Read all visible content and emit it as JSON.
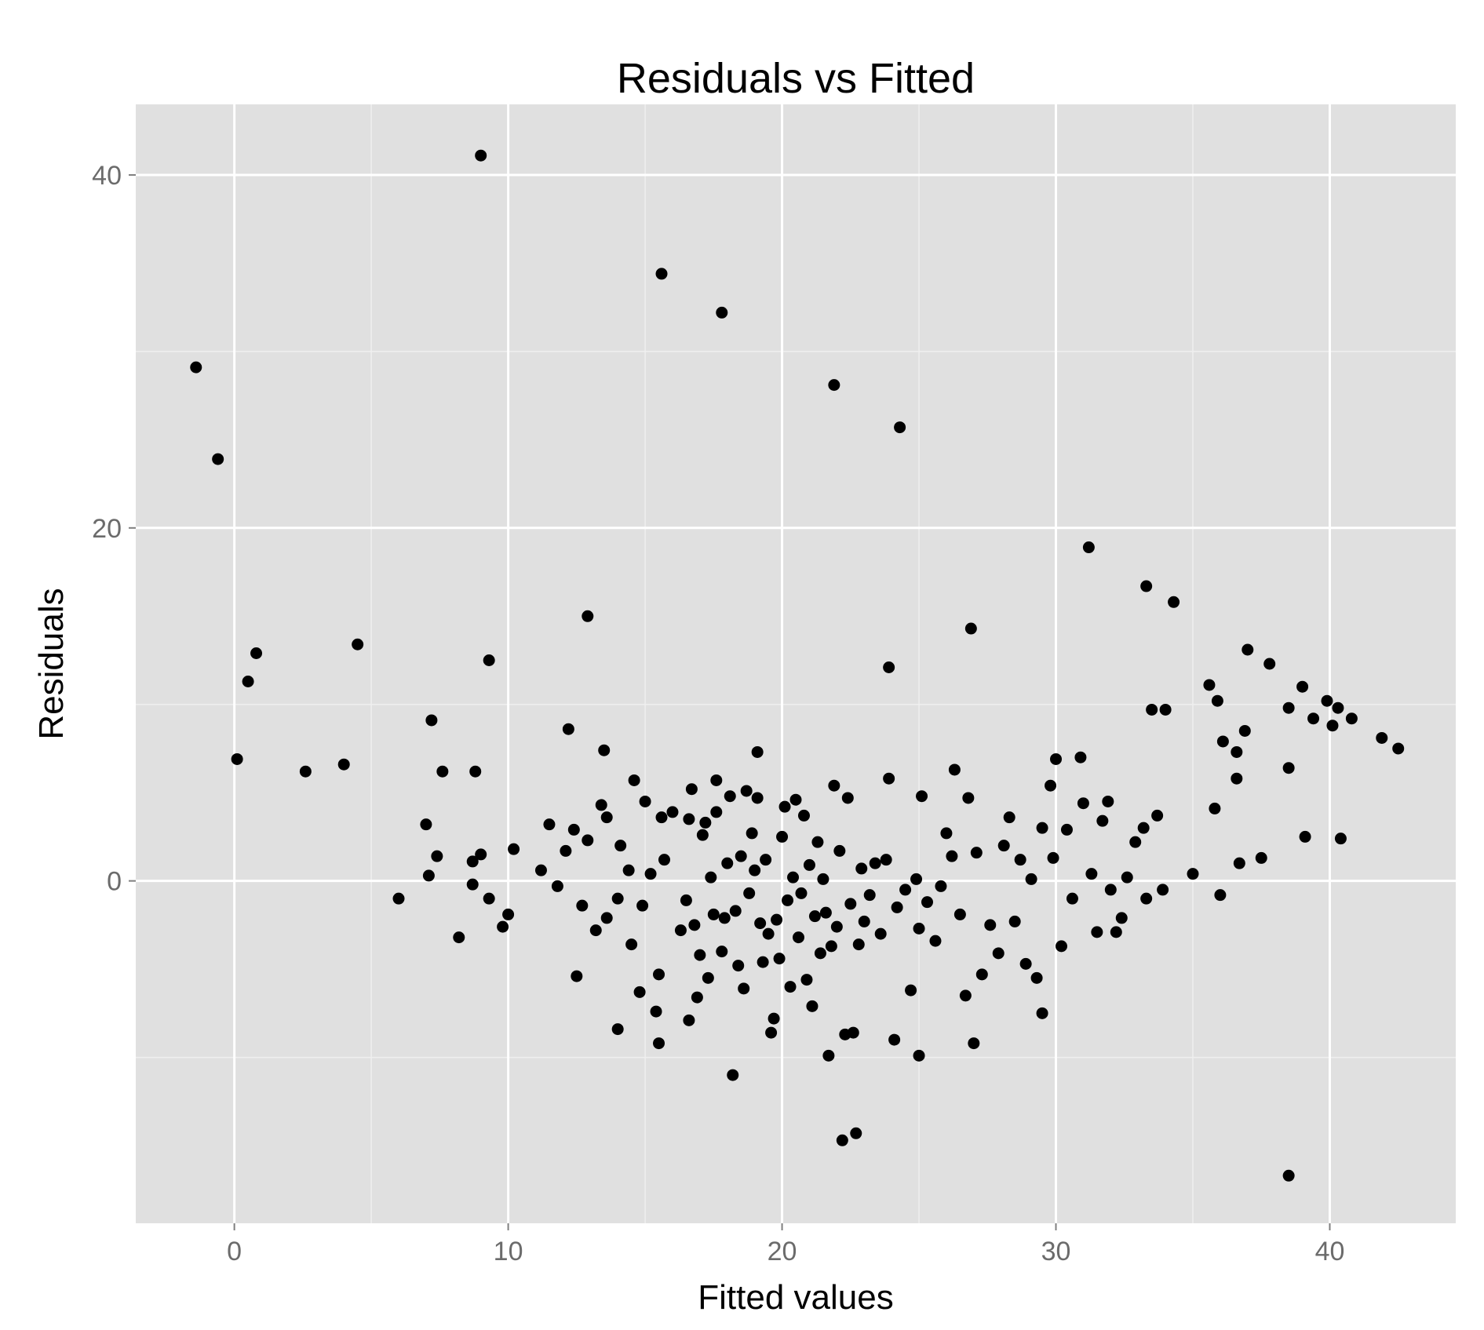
{
  "colors": {
    "panel_background": "#e0e0e0",
    "grid_major": "#ffffff",
    "grid_minor": "#efefef",
    "point": "#000000",
    "tick_label": "#6b6b6b",
    "text": "#000000"
  },
  "chart_data": {
    "type": "scatter",
    "title": "Residuals vs Fitted",
    "xlabel": "Fitted values",
    "ylabel": "Residuals",
    "xlim": [
      -3.6,
      44.6
    ],
    "ylim": [
      -19.4,
      44.0
    ],
    "x_ticks": [
      0,
      10,
      20,
      30,
      40
    ],
    "y_ticks": [
      0,
      20,
      40
    ],
    "x_tick_labels": [
      "0",
      "10",
      "20",
      "30",
      "40"
    ],
    "y_tick_labels": [
      "0",
      "20",
      "40"
    ],
    "grid": true,
    "legend": "none",
    "points": [
      [
        9.0,
        41.1
      ],
      [
        15.6,
        34.4
      ],
      [
        17.8,
        32.2
      ],
      [
        21.9,
        28.1
      ],
      [
        24.3,
        25.7
      ],
      [
        -1.4,
        29.1
      ],
      [
        -0.6,
        23.9
      ],
      [
        0.8,
        12.9
      ],
      [
        0.5,
        11.3
      ],
      [
        4.5,
        13.4
      ],
      [
        9.3,
        12.5
      ],
      [
        12.9,
        15.0
      ],
      [
        0.1,
        6.9
      ],
      [
        2.6,
        6.2
      ],
      [
        4.0,
        6.6
      ],
      [
        7.2,
        9.1
      ],
      [
        7.6,
        6.2
      ],
      [
        8.8,
        6.2
      ],
      [
        7.0,
        3.2
      ],
      [
        7.4,
        1.4
      ],
      [
        7.1,
        0.3
      ],
      [
        8.2,
        -3.2
      ],
      [
        8.7,
        -0.2
      ],
      [
        8.7,
        1.1
      ],
      [
        9.0,
        1.5
      ],
      [
        9.3,
        -1.0
      ],
      [
        9.8,
        -2.6
      ],
      [
        10.0,
        -1.9
      ],
      [
        10.2,
        1.8
      ],
      [
        6.0,
        -1.0
      ],
      [
        11.2,
        0.6
      ],
      [
        11.5,
        3.2
      ],
      [
        11.8,
        -0.3
      ],
      [
        12.1,
        1.7
      ],
      [
        12.4,
        2.9
      ],
      [
        12.2,
        8.6
      ],
      [
        12.5,
        -5.4
      ],
      [
        12.7,
        -1.4
      ],
      [
        12.9,
        2.3
      ],
      [
        13.2,
        -2.8
      ],
      [
        13.4,
        4.3
      ],
      [
        13.5,
        7.4
      ],
      [
        13.6,
        -2.1
      ],
      [
        13.6,
        3.6
      ],
      [
        14.0,
        -1.0
      ],
      [
        14.0,
        -8.4
      ],
      [
        14.1,
        2.0
      ],
      [
        14.4,
        0.6
      ],
      [
        14.5,
        -3.6
      ],
      [
        14.6,
        5.7
      ],
      [
        14.8,
        -6.3
      ],
      [
        14.9,
        -1.4
      ],
      [
        15.0,
        4.5
      ],
      [
        15.2,
        0.4
      ],
      [
        15.4,
        -7.4
      ],
      [
        15.5,
        -9.2
      ],
      [
        15.5,
        -5.3
      ],
      [
        15.6,
        3.6
      ],
      [
        15.7,
        1.2
      ],
      [
        16.0,
        3.9
      ],
      [
        16.3,
        -2.8
      ],
      [
        16.5,
        -1.1
      ],
      [
        16.6,
        3.5
      ],
      [
        16.6,
        -7.9
      ],
      [
        16.7,
        5.2
      ],
      [
        16.8,
        -2.5
      ],
      [
        16.9,
        -6.6
      ],
      [
        17.0,
        -4.2
      ],
      [
        17.1,
        2.6
      ],
      [
        17.2,
        3.3
      ],
      [
        17.3,
        -5.5
      ],
      [
        17.4,
        0.2
      ],
      [
        17.5,
        -1.9
      ],
      [
        17.6,
        3.9
      ],
      [
        17.6,
        5.7
      ],
      [
        17.8,
        -4.0
      ],
      [
        17.9,
        -2.1
      ],
      [
        18.0,
        1.0
      ],
      [
        18.1,
        4.8
      ],
      [
        18.2,
        -11.0
      ],
      [
        18.3,
        -1.7
      ],
      [
        18.4,
        -4.8
      ],
      [
        18.5,
        1.4
      ],
      [
        18.6,
        -6.1
      ],
      [
        18.7,
        5.1
      ],
      [
        18.8,
        -0.7
      ],
      [
        18.9,
        2.7
      ],
      [
        19.0,
        0.6
      ],
      [
        19.1,
        4.7
      ],
      [
        19.1,
        7.3
      ],
      [
        19.2,
        -2.4
      ],
      [
        19.3,
        -4.6
      ],
      [
        19.4,
        1.2
      ],
      [
        19.5,
        -3.0
      ],
      [
        19.6,
        -8.6
      ],
      [
        19.7,
        -7.8
      ],
      [
        19.8,
        -2.2
      ],
      [
        19.9,
        -4.4
      ],
      [
        20.0,
        2.5
      ],
      [
        20.1,
        4.2
      ],
      [
        20.2,
        -1.1
      ],
      [
        20.3,
        -6.0
      ],
      [
        20.4,
        0.2
      ],
      [
        20.5,
        4.6
      ],
      [
        20.6,
        -3.2
      ],
      [
        20.7,
        -0.7
      ],
      [
        20.8,
        3.7
      ],
      [
        20.9,
        -5.6
      ],
      [
        21.0,
        0.9
      ],
      [
        21.1,
        -7.1
      ],
      [
        21.2,
        -2.0
      ],
      [
        21.3,
        2.2
      ],
      [
        21.4,
        -4.1
      ],
      [
        21.5,
        0.1
      ],
      [
        21.6,
        -1.8
      ],
      [
        21.7,
        -9.9
      ],
      [
        21.8,
        -3.7
      ],
      [
        21.9,
        5.4
      ],
      [
        22.0,
        -2.6
      ],
      [
        22.1,
        1.7
      ],
      [
        22.2,
        -14.7
      ],
      [
        22.3,
        -8.7
      ],
      [
        22.4,
        4.7
      ],
      [
        22.5,
        -1.3
      ],
      [
        22.6,
        -8.6
      ],
      [
        22.7,
        -14.3
      ],
      [
        22.8,
        -3.6
      ],
      [
        22.9,
        0.7
      ],
      [
        23.0,
        -2.3
      ],
      [
        23.2,
        -0.8
      ],
      [
        23.4,
        1.0
      ],
      [
        23.6,
        -3.0
      ],
      [
        23.8,
        1.2
      ],
      [
        23.9,
        5.8
      ],
      [
        23.9,
        12.1
      ],
      [
        24.1,
        -9.0
      ],
      [
        24.2,
        -1.5
      ],
      [
        24.5,
        -0.5
      ],
      [
        24.7,
        -6.2
      ],
      [
        24.9,
        0.1
      ],
      [
        25.0,
        -9.9
      ],
      [
        25.0,
        -2.7
      ],
      [
        25.1,
        4.8
      ],
      [
        25.3,
        -1.2
      ],
      [
        25.6,
        -3.4
      ],
      [
        25.8,
        -0.3
      ],
      [
        26.0,
        2.7
      ],
      [
        26.2,
        1.4
      ],
      [
        26.3,
        6.3
      ],
      [
        26.5,
        -1.9
      ],
      [
        26.7,
        -6.5
      ],
      [
        26.8,
        4.7
      ],
      [
        26.9,
        14.3
      ],
      [
        27.0,
        -9.2
      ],
      [
        27.1,
        1.6
      ],
      [
        27.3,
        -5.3
      ],
      [
        27.6,
        -2.5
      ],
      [
        27.9,
        -4.1
      ],
      [
        28.1,
        2.0
      ],
      [
        28.3,
        3.6
      ],
      [
        28.5,
        -2.3
      ],
      [
        28.7,
        1.2
      ],
      [
        28.9,
        -4.7
      ],
      [
        29.1,
        0.1
      ],
      [
        29.3,
        -5.5
      ],
      [
        29.5,
        3.0
      ],
      [
        29.5,
        -7.5
      ],
      [
        29.8,
        5.4
      ],
      [
        29.9,
        1.3
      ],
      [
        30.0,
        6.9
      ],
      [
        30.2,
        -3.7
      ],
      [
        30.4,
        2.9
      ],
      [
        30.6,
        -1.0
      ],
      [
        30.9,
        7.0
      ],
      [
        31.0,
        4.4
      ],
      [
        31.2,
        18.9
      ],
      [
        31.3,
        0.4
      ],
      [
        31.5,
        -2.9
      ],
      [
        31.7,
        3.4
      ],
      [
        31.9,
        4.5
      ],
      [
        32.0,
        -0.5
      ],
      [
        32.2,
        -2.9
      ],
      [
        32.4,
        -2.1
      ],
      [
        32.6,
        0.2
      ],
      [
        32.9,
        2.2
      ],
      [
        33.2,
        3.0
      ],
      [
        33.3,
        -1.0
      ],
      [
        33.3,
        16.7
      ],
      [
        33.5,
        9.7
      ],
      [
        33.7,
        3.7
      ],
      [
        33.9,
        -0.5
      ],
      [
        34.0,
        9.7
      ],
      [
        34.3,
        15.8
      ],
      [
        35.0,
        0.4
      ],
      [
        35.6,
        11.1
      ],
      [
        35.8,
        4.1
      ],
      [
        35.9,
        10.2
      ],
      [
        36.0,
        -0.8
      ],
      [
        36.1,
        7.9
      ],
      [
        36.6,
        7.3
      ],
      [
        36.6,
        5.8
      ],
      [
        36.7,
        1.0
      ],
      [
        36.9,
        8.5
      ],
      [
        37.0,
        13.1
      ],
      [
        37.5,
        1.3
      ],
      [
        37.8,
        12.3
      ],
      [
        38.5,
        6.4
      ],
      [
        38.5,
        9.8
      ],
      [
        38.5,
        -16.7
      ],
      [
        39.0,
        11.0
      ],
      [
        39.1,
        2.5
      ],
      [
        39.4,
        9.2
      ],
      [
        39.9,
        10.2
      ],
      [
        40.1,
        8.8
      ],
      [
        40.3,
        9.8
      ],
      [
        40.4,
        2.4
      ],
      [
        40.8,
        9.2
      ],
      [
        41.9,
        8.1
      ],
      [
        42.5,
        7.5
      ]
    ]
  }
}
